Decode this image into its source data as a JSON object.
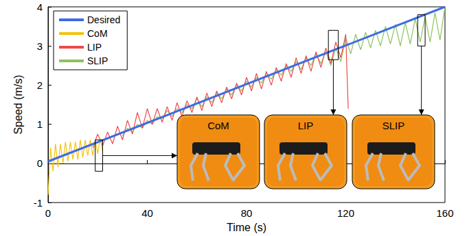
{
  "chart_data": {
    "type": "line",
    "x_label": "Time (s)",
    "y_label": "Speed (m/s)",
    "xlim": [
      0,
      160
    ],
    "xticks": [
      0,
      40,
      80,
      120,
      160
    ],
    "ylim": [
      -1,
      4
    ],
    "yticks": [
      -1,
      0,
      1,
      2,
      3,
      4
    ],
    "legend": "upper left",
    "grid": false,
    "series": [
      {
        "name": "Desired",
        "color": "#3d6be6",
        "x": [
          0,
          160
        ],
        "values": [
          0.05,
          4.0
        ]
      },
      {
        "name": "CoM",
        "color": "#f2c40f",
        "x": [
          0,
          1,
          2,
          3,
          4,
          5,
          6,
          7,
          8,
          9,
          10,
          11,
          12,
          13,
          14,
          15,
          16,
          17,
          18,
          19,
          20,
          21,
          22
        ],
        "values": [
          -0.8,
          0.4,
          -0.2,
          0.5,
          -0.1,
          0.5,
          0.0,
          0.55,
          0.05,
          0.55,
          0.1,
          0.55,
          0.1,
          0.6,
          0.15,
          0.6,
          0.2,
          0.6,
          0.2,
          0.6,
          0.25,
          0.65,
          0.3
        ]
      },
      {
        "name": "LIP",
        "color": "#f04848",
        "x": [
          18,
          20,
          22,
          24,
          26,
          28,
          30,
          32,
          34,
          36,
          38,
          40,
          42,
          44,
          46,
          48,
          50,
          52,
          54,
          56,
          58,
          60,
          62,
          64,
          66,
          68,
          70,
          72,
          74,
          76,
          78,
          80,
          82,
          84,
          86,
          88,
          90,
          92,
          94,
          96,
          98,
          100,
          102,
          104,
          106,
          108,
          110,
          112,
          114,
          116,
          118,
          120,
          121
        ],
        "values": [
          0.4,
          0.75,
          0.45,
          0.8,
          0.5,
          0.95,
          0.6,
          1.1,
          0.75,
          1.3,
          0.9,
          1.4,
          1.0,
          1.4,
          1.05,
          1.45,
          1.1,
          1.55,
          1.2,
          1.6,
          1.3,
          1.7,
          1.35,
          1.8,
          1.45,
          1.85,
          1.55,
          1.95,
          1.65,
          2.05,
          1.75,
          2.2,
          1.85,
          2.3,
          1.9,
          2.35,
          2.0,
          2.45,
          2.1,
          2.55,
          2.2,
          2.7,
          2.3,
          2.75,
          2.35,
          2.85,
          2.45,
          2.95,
          2.55,
          3.1,
          2.7,
          3.3,
          1.4
        ]
      },
      {
        "name": "SLIP",
        "color": "#8cc35a",
        "x": [
          30,
          32,
          34,
          36,
          38,
          40,
          42,
          44,
          46,
          48,
          50,
          52,
          54,
          56,
          58,
          60,
          62,
          64,
          66,
          68,
          70,
          72,
          74,
          76,
          78,
          80,
          82,
          84,
          86,
          88,
          90,
          92,
          94,
          96,
          98,
          100,
          102,
          104,
          106,
          108,
          110,
          112,
          114,
          116,
          118,
          120,
          122,
          124,
          126,
          128,
          130,
          132,
          134,
          136,
          138,
          140,
          142,
          144,
          146,
          148,
          150,
          152,
          154,
          156,
          158,
          160
        ],
        "values": [
          0.7,
          0.9,
          0.8,
          1.0,
          0.9,
          1.1,
          1.0,
          1.2,
          1.15,
          1.35,
          1.2,
          1.4,
          1.3,
          1.5,
          1.4,
          1.65,
          1.45,
          1.7,
          1.55,
          1.8,
          1.65,
          1.9,
          1.75,
          2.0,
          1.85,
          2.1,
          1.95,
          2.2,
          2.05,
          2.3,
          2.15,
          2.4,
          2.25,
          2.5,
          2.35,
          2.6,
          2.4,
          2.7,
          2.5,
          2.8,
          2.55,
          2.85,
          2.5,
          2.95,
          2.6,
          3.2,
          2.8,
          3.3,
          2.9,
          3.35,
          2.95,
          3.4,
          3.0,
          3.5,
          3.05,
          3.55,
          3.0,
          3.6,
          3.05,
          3.7,
          3.1,
          3.75,
          3.1,
          3.85,
          3.15,
          4.0
        ]
      }
    ],
    "annotations": [
      {
        "label": "CoM",
        "x": [
          19,
          22
        ],
        "y": [
          -0.2,
          0.6
        ]
      },
      {
        "label": "LIP",
        "x": [
          113,
          117
        ],
        "y": [
          2.65,
          3.4
        ]
      },
      {
        "label": "SLIP",
        "x": [
          149,
          152
        ],
        "y": [
          3.0,
          3.8
        ]
      }
    ]
  }
}
